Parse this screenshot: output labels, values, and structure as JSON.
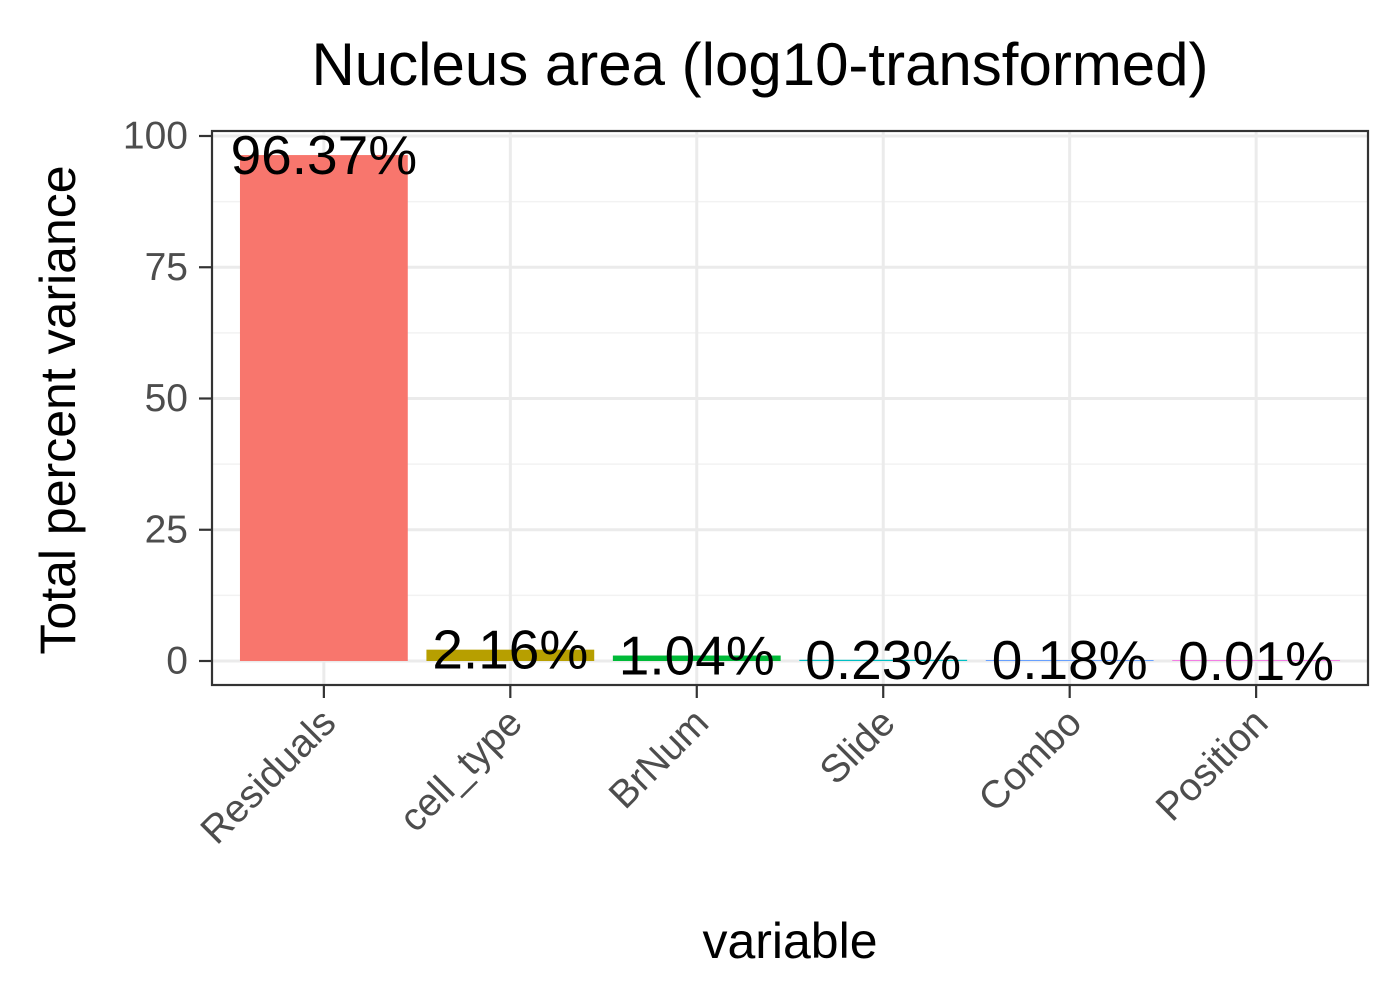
{
  "chart_data": {
    "type": "bar",
    "title": "Nucleus area (log10-transformed)",
    "xlabel": "variable",
    "ylabel": "Total percent variance",
    "categories": [
      "Residuals",
      "cell_type",
      "BrNum",
      "Slide",
      "Combo",
      "Position"
    ],
    "values": [
      96.37,
      2.16,
      1.04,
      0.23,
      0.18,
      0.01
    ],
    "data_labels": [
      "96.37%",
      "2.16%",
      "1.04%",
      "0.23%",
      "0.18%",
      "0.01%"
    ],
    "colors": [
      "#F8766D",
      "#B79F00",
      "#00BA38",
      "#00BFC4",
      "#619CFF",
      "#F564E3"
    ],
    "yticks": [
      0,
      25,
      50,
      75,
      100
    ],
    "ylim": [
      -4.5,
      100
    ],
    "grid": true,
    "legend": "none"
  }
}
